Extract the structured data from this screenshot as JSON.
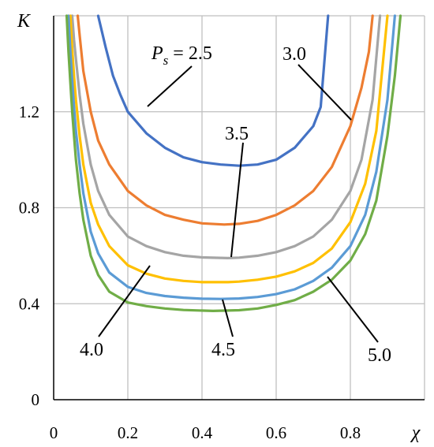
{
  "chart_data": {
    "type": "line",
    "xlabel": "χ",
    "ylabel": "K",
    "xlim": [
      0,
      1.0
    ],
    "ylim": [
      0,
      1.6
    ],
    "xticks": [
      "0",
      "0.2",
      "0.4",
      "0.6",
      "0.8"
    ],
    "yticks": [
      "0",
      "0.4",
      "0.8",
      "1.2"
    ],
    "grid": true,
    "series": [
      {
        "name": "2.5",
        "color": "#4472C4",
        "min": 0.975,
        "xmin": 0.5,
        "x": [
          0.12,
          0.14,
          0.16,
          0.18,
          0.2,
          0.25,
          0.3,
          0.35,
          0.4,
          0.45,
          0.5,
          0.55,
          0.6,
          0.65,
          0.7,
          0.72,
          0.74
        ],
        "y": [
          1.6,
          1.47,
          1.35,
          1.27,
          1.2,
          1.11,
          1.05,
          1.01,
          0.99,
          0.98,
          0.975,
          0.98,
          1.0,
          1.05,
          1.14,
          1.22,
          1.6
        ]
      },
      {
        "name": "3.0",
        "color": "#ED7D31",
        "min": 0.73,
        "xmin": 0.46,
        "x": [
          0.065,
          0.07,
          0.08,
          0.1,
          0.12,
          0.15,
          0.2,
          0.25,
          0.3,
          0.35,
          0.4,
          0.46,
          0.5,
          0.55,
          0.6,
          0.65,
          0.7,
          0.75,
          0.8,
          0.83,
          0.85,
          0.86
        ],
        "y": [
          1.6,
          1.52,
          1.37,
          1.2,
          1.08,
          0.98,
          0.87,
          0.81,
          0.77,
          0.75,
          0.735,
          0.73,
          0.733,
          0.745,
          0.77,
          0.81,
          0.87,
          0.97,
          1.14,
          1.3,
          1.45,
          1.6
        ]
      },
      {
        "name": "3.5",
        "color": "#A5A5A5",
        "min": 0.59,
        "xmin": 0.47,
        "x": [
          0.05,
          0.055,
          0.06,
          0.07,
          0.08,
          0.1,
          0.12,
          0.15,
          0.2,
          0.25,
          0.3,
          0.35,
          0.4,
          0.47,
          0.5,
          0.55,
          0.6,
          0.65,
          0.7,
          0.75,
          0.8,
          0.83,
          0.86,
          0.88
        ],
        "y": [
          1.6,
          1.5,
          1.42,
          1.27,
          1.15,
          0.98,
          0.87,
          0.77,
          0.68,
          0.64,
          0.615,
          0.6,
          0.593,
          0.59,
          0.592,
          0.6,
          0.615,
          0.64,
          0.68,
          0.75,
          0.87,
          1.0,
          1.25,
          1.6
        ]
      },
      {
        "name": "4.0",
        "color": "#FFC000",
        "min": 0.49,
        "xmin": 0.47,
        "x": [
          0.045,
          0.05,
          0.055,
          0.06,
          0.07,
          0.08,
          0.1,
          0.12,
          0.15,
          0.2,
          0.25,
          0.3,
          0.35,
          0.4,
          0.47,
          0.5,
          0.55,
          0.6,
          0.65,
          0.7,
          0.75,
          0.8,
          0.84,
          0.87,
          0.9
        ],
        "y": [
          1.6,
          1.46,
          1.35,
          1.25,
          1.1,
          0.98,
          0.82,
          0.73,
          0.64,
          0.56,
          0.525,
          0.505,
          0.495,
          0.49,
          0.49,
          0.492,
          0.5,
          0.513,
          0.535,
          0.57,
          0.63,
          0.74,
          0.9,
          1.12,
          1.6
        ]
      },
      {
        "name": "4.5",
        "color": "#5B9BD5",
        "min": 0.42,
        "xmin": 0.45,
        "x": [
          0.04,
          0.045,
          0.05,
          0.055,
          0.06,
          0.07,
          0.08,
          0.1,
          0.12,
          0.15,
          0.2,
          0.25,
          0.3,
          0.35,
          0.4,
          0.45,
          0.5,
          0.55,
          0.6,
          0.65,
          0.7,
          0.75,
          0.8,
          0.84,
          0.87,
          0.9,
          0.92
        ],
        "y": [
          1.6,
          1.45,
          1.33,
          1.22,
          1.12,
          0.98,
          0.86,
          0.7,
          0.61,
          0.53,
          0.47,
          0.445,
          0.432,
          0.425,
          0.421,
          0.42,
          0.422,
          0.428,
          0.44,
          0.46,
          0.495,
          0.55,
          0.64,
          0.77,
          0.95,
          1.25,
          1.6
        ]
      },
      {
        "name": "5.0",
        "color": "#70AD47",
        "min": 0.37,
        "xmin": 0.43,
        "x": [
          0.035,
          0.04,
          0.045,
          0.05,
          0.055,
          0.06,
          0.07,
          0.08,
          0.1,
          0.12,
          0.15,
          0.2,
          0.25,
          0.3,
          0.35,
          0.43,
          0.5,
          0.55,
          0.6,
          0.65,
          0.7,
          0.75,
          0.8,
          0.84,
          0.87,
          0.9,
          0.92,
          0.935
        ],
        "y": [
          1.6,
          1.45,
          1.32,
          1.2,
          1.1,
          1.0,
          0.86,
          0.75,
          0.6,
          0.52,
          0.45,
          0.405,
          0.39,
          0.38,
          0.374,
          0.37,
          0.373,
          0.38,
          0.395,
          0.415,
          0.45,
          0.5,
          0.58,
          0.69,
          0.83,
          1.1,
          1.35,
          1.6
        ]
      }
    ],
    "annotations": {
      "ps_label_prefix": "P",
      "ps_label_sub": "s",
      "ps_label_eq": " = 2.5",
      "label_3_0": "3.0",
      "label_3_5": "3.5",
      "label_4_0": "4.0",
      "label_4_5": "4.5",
      "label_5_0": "5.0"
    }
  }
}
